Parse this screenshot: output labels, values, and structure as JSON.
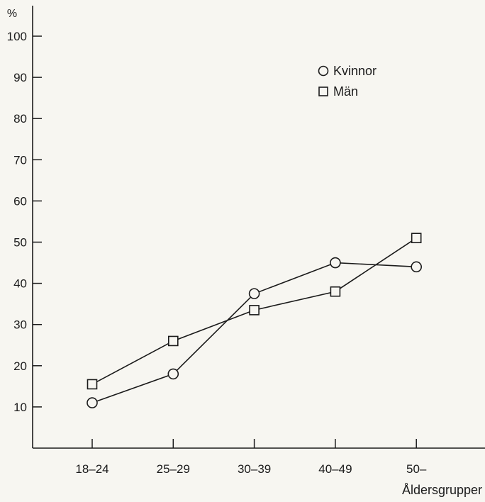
{
  "chart_data": {
    "type": "line",
    "y_unit_label": "%",
    "xlabel": "Åldersgrupper",
    "categories": [
      "18–24",
      "25–29",
      "30–39",
      "40–49",
      "50–"
    ],
    "yticks": [
      10,
      20,
      30,
      40,
      50,
      60,
      70,
      80,
      90,
      100
    ],
    "ylim": [
      0,
      108
    ],
    "grid": false,
    "legend_position": "top-right",
    "series": [
      {
        "name": "Kvinnor",
        "marker": "circle",
        "values": [
          11,
          18,
          37.5,
          45,
          44
        ]
      },
      {
        "name": "Män",
        "marker": "square",
        "values": [
          15.5,
          26,
          33.5,
          38,
          51
        ]
      }
    ],
    "colors": {
      "ink": "#1b1b1b",
      "background": "#f7f6f1"
    }
  }
}
